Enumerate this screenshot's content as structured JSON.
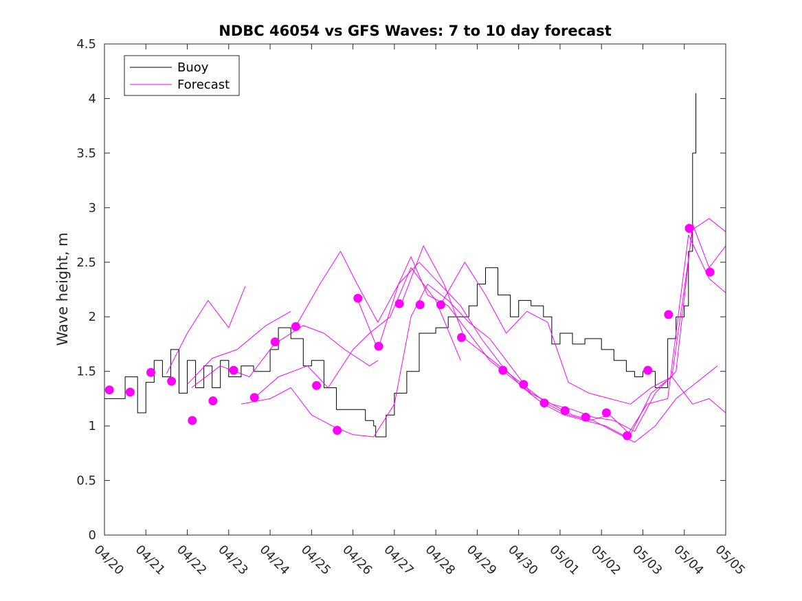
{
  "chart_data": {
    "type": "line",
    "title": "NDBC 46054 vs GFS Waves: 7 to 10 day forecast",
    "xlabel": "",
    "ylabel": "Wave height, m",
    "ylim": [
      0,
      4.5
    ],
    "yticks": [
      "0",
      "0.5",
      "1",
      "1.5",
      "2",
      "2.5",
      "3",
      "3.5",
      "4",
      "4.5"
    ],
    "xlim": [
      "04/20",
      "05/05"
    ],
    "xticks": [
      "04/20",
      "04/21",
      "04/22",
      "04/23",
      "04/24",
      "04/25",
      "04/26",
      "04/27",
      "04/28",
      "04/29",
      "04/30",
      "05/01",
      "05/02",
      "05/03",
      "05/04",
      "05/05"
    ],
    "legend": {
      "position": "top-left",
      "entries": [
        "Buoy",
        "Forecast"
      ]
    },
    "colors": {
      "buoy": "#000000",
      "forecast": "#ff00ff"
    },
    "series": [
      {
        "name": "Buoy",
        "x_days": [
          0.0,
          0.5,
          0.8,
          1.0,
          1.2,
          1.4,
          1.6,
          1.8,
          2.0,
          2.2,
          2.4,
          2.6,
          2.8,
          3.0,
          3.3,
          3.6,
          4.0,
          4.2,
          4.5,
          4.8,
          5.0,
          5.3,
          5.6,
          6.0,
          6.3,
          6.5,
          6.55,
          6.8,
          7.0,
          7.3,
          7.6,
          8.0,
          8.3,
          8.6,
          8.8,
          9.0,
          9.2,
          9.5,
          9.8,
          10.0,
          10.3,
          10.6,
          10.8,
          11.0,
          11.3,
          11.6,
          12.0,
          12.3,
          12.6,
          12.8,
          13.0,
          13.3,
          13.6,
          13.8,
          14.0,
          14.1,
          14.2,
          14.28
        ],
        "values": [
          1.25,
          1.45,
          1.12,
          1.4,
          1.6,
          1.45,
          1.7,
          1.3,
          1.6,
          1.35,
          1.55,
          1.35,
          1.6,
          1.45,
          1.55,
          1.5,
          1.7,
          1.9,
          1.8,
          1.55,
          1.6,
          1.35,
          1.15,
          1.15,
          1.05,
          1.0,
          0.9,
          1.1,
          1.3,
          1.5,
          1.85,
          1.9,
          2.0,
          2.0,
          2.1,
          2.3,
          2.45,
          2.2,
          2.0,
          2.15,
          2.1,
          2.0,
          1.75,
          1.85,
          1.75,
          1.8,
          1.7,
          1.6,
          1.5,
          1.45,
          1.5,
          1.35,
          1.8,
          2.0,
          2.1,
          2.6,
          3.5,
          4.05
        ]
      },
      {
        "name": "Forecast",
        "x_days": [
          2.0,
          2.6,
          3.2,
          3.9,
          4.5
        ],
        "values": [
          1.38,
          1.62,
          1.7,
          1.92,
          2.05
        ]
      },
      {
        "name": "Forecast",
        "x_days": [
          2.1,
          2.8,
          3.5,
          4.1,
          4.8,
          5.3,
          5.8,
          6.4,
          6.6
        ],
        "values": [
          1.35,
          1.55,
          1.45,
          1.75,
          1.92,
          1.85,
          1.7,
          1.55,
          1.6
        ]
      },
      {
        "name": "Forecast",
        "x_days": [
          1.5,
          2.0,
          2.5,
          3.0,
          3.4
        ],
        "values": [
          1.48,
          1.85,
          2.15,
          1.9,
          2.28
        ]
      },
      {
        "name": "Forecast",
        "x_days": [
          3.3,
          4.0,
          4.5,
          5.0,
          5.5,
          6.0,
          6.5,
          7.0,
          7.4,
          7.8,
          8.3,
          8.8,
          9.3,
          9.8,
          10.3,
          10.8,
          11.3,
          11.8,
          12.3,
          12.8,
          13.3,
          13.8,
          14.3,
          14.8
        ],
        "values": [
          1.2,
          1.25,
          1.35,
          1.1,
          1.0,
          0.92,
          0.9,
          1.2,
          2.0,
          2.3,
          2.15,
          1.95,
          1.8,
          1.55,
          1.3,
          1.2,
          1.1,
          1.05,
          0.95,
          0.85,
          1.0,
          1.25,
          1.4,
          1.55
        ]
      },
      {
        "name": "Forecast",
        "x_days": [
          3.6,
          4.2,
          4.9,
          5.4,
          6.0,
          6.4,
          6.9,
          7.4,
          8.0,
          8.6
        ],
        "values": [
          1.25,
          1.45,
          1.55,
          1.35,
          1.7,
          1.85,
          2.0,
          2.45,
          2.15,
          1.6
        ]
      },
      {
        "name": "Forecast",
        "x_days": [
          4.6,
          5.2,
          5.7,
          6.1,
          6.6,
          7.1,
          7.6,
          8.1,
          8.6,
          9.1,
          9.6,
          10.1,
          10.6,
          11.1,
          11.6,
          12.1,
          12.6,
          13.1,
          13.6,
          14.1,
          14.6,
          15.0
        ],
        "values": [
          1.9,
          2.3,
          2.6,
          2.3,
          1.95,
          2.3,
          2.5,
          2.3,
          2.1,
          1.8,
          1.55,
          1.35,
          1.2,
          1.1,
          1.05,
          1.0,
          0.9,
          1.2,
          1.25,
          2.75,
          2.35,
          2.22
        ]
      },
      {
        "name": "Forecast",
        "x_days": [
          6.1,
          6.6,
          7.1,
          7.4,
          7.8,
          8.3,
          8.8,
          9.3,
          9.8,
          10.3,
          10.8,
          11.3,
          11.8,
          12.3,
          12.8,
          13.3,
          13.8,
          14.2,
          14.6,
          15.0
        ],
        "values": [
          2.17,
          1.7,
          2.3,
          2.55,
          2.2,
          2.1,
          1.85,
          1.6,
          1.45,
          1.3,
          1.2,
          1.15,
          1.08,
          1.05,
          0.95,
          1.3,
          1.5,
          2.85,
          2.45,
          2.65
        ]
      },
      {
        "name": "Forecast",
        "x_days": [
          7.2,
          7.7,
          8.2,
          8.7,
          9.2,
          9.7,
          10.2,
          10.7,
          11.2,
          11.7,
          12.2,
          12.7,
          13.2,
          13.7,
          14.2,
          14.6,
          15.0
        ],
        "values": [
          2.15,
          2.65,
          2.3,
          1.8,
          1.65,
          1.5,
          1.35,
          1.2,
          1.1,
          1.05,
          1.1,
          0.92,
          1.3,
          1.45,
          1.2,
          1.25,
          1.12
        ]
      },
      {
        "name": "Forecast",
        "x_days": [
          8.1,
          8.7,
          9.2,
          9.7,
          10.2,
          10.7,
          11.2,
          11.7,
          12.2,
          12.7,
          13.2,
          13.7,
          14.2,
          14.6,
          15.0
        ],
        "values": [
          2.1,
          2.5,
          2.2,
          1.85,
          2.05,
          1.95,
          1.4,
          1.3,
          1.25,
          1.2,
          1.35,
          1.45,
          2.8,
          2.9,
          2.78
        ]
      }
    ],
    "markers": {
      "name": "Forecast",
      "x_days": [
        0.12,
        0.62,
        1.12,
        1.62,
        2.12,
        2.62,
        3.12,
        3.62,
        4.12,
        4.62,
        5.12,
        5.62,
        6.12,
        6.62,
        7.12,
        7.62,
        8.12,
        8.62,
        9.62,
        10.12,
        10.62,
        11.12,
        11.62,
        12.12,
        12.62,
        13.12,
        13.62,
        14.12,
        14.62
      ],
      "values": [
        1.33,
        1.31,
        1.49,
        1.41,
        1.05,
        1.23,
        1.51,
        1.26,
        1.77,
        1.91,
        1.37,
        0.96,
        2.17,
        1.73,
        2.12,
        2.11,
        2.11,
        1.81,
        1.51,
        1.38,
        1.21,
        1.14,
        1.08,
        1.12,
        0.91,
        1.51,
        2.02,
        2.81,
        2.41
      ]
    }
  }
}
